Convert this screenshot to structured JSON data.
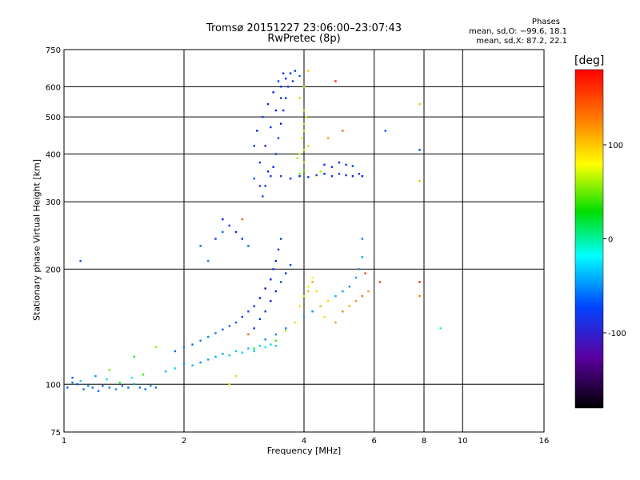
{
  "chart_data": {
    "type": "scatter",
    "title": "Tromsø 20151227 23:06:00–23:07:43",
    "subtitle": "RwPretec (8p)",
    "xlabel": "Frequency [MHz]",
    "ylabel": "Stationary phase Virtual Height [km]",
    "x_scale": "log",
    "y_scale": "log",
    "xlim": [
      1,
      16
    ],
    "ylim": [
      75,
      750
    ],
    "x_ticks": [
      1,
      2,
      4,
      6,
      8,
      10,
      16
    ],
    "y_ticks": [
      75,
      100,
      200,
      300,
      400,
      500,
      600,
      750
    ],
    "grid": true,
    "legend": {
      "title": "Phases",
      "line_o": "mean, sd,O: −99.6, 18.1",
      "line_x": "mean, sd,X:  87.2, 22.1",
      "placement": "top-right"
    },
    "colorbar": {
      "unit": "[deg]",
      "range": [
        -180,
        180
      ],
      "ticks": [
        100,
        0,
        -100
      ]
    },
    "series": [
      {
        "points": [
          [
            1.02,
            98,
            -95
          ],
          [
            1.05,
            101,
            -90
          ],
          [
            1.08,
            100,
            -100
          ],
          [
            1.12,
            97,
            -95
          ],
          [
            1.15,
            99,
            -85
          ],
          [
            1.18,
            98,
            -90
          ],
          [
            1.22,
            96,
            -95
          ],
          [
            1.25,
            99,
            -100
          ],
          [
            1.3,
            98,
            -90
          ],
          [
            1.35,
            97,
            -85
          ],
          [
            1.4,
            99,
            -95
          ],
          [
            1.45,
            98,
            -95
          ],
          [
            1.5,
            100,
            -80
          ],
          [
            1.55,
            98,
            -90
          ],
          [
            1.6,
            97,
            -95
          ],
          [
            1.65,
            99,
            -85
          ],
          [
            1.7,
            98,
            -90
          ],
          [
            1.05,
            104,
            -100
          ],
          [
            1.1,
            102,
            -70
          ],
          [
            1.2,
            105,
            -80
          ],
          [
            1.28,
            103,
            -60
          ],
          [
            1.38,
            101,
            10
          ],
          [
            1.48,
            104,
            -40
          ],
          [
            1.58,
            106,
            40
          ],
          [
            1.8,
            108,
            -70
          ],
          [
            1.9,
            110,
            -60
          ],
          [
            2.0,
            113,
            -80
          ],
          [
            2.1,
            112,
            -75
          ],
          [
            2.2,
            114,
            -85
          ],
          [
            2.3,
            116,
            -80
          ],
          [
            2.4,
            118,
            -75
          ],
          [
            2.5,
            120,
            -80
          ],
          [
            2.6,
            119,
            -70
          ],
          [
            2.7,
            122,
            -65
          ],
          [
            2.8,
            121,
            -60
          ],
          [
            2.9,
            124,
            -70
          ],
          [
            3.0,
            122,
            -65
          ],
          [
            3.1,
            126,
            -60
          ],
          [
            3.2,
            125,
            -55
          ],
          [
            3.3,
            127,
            -60
          ],
          [
            3.4,
            126,
            -65
          ],
          [
            1.9,
            122,
            -95
          ],
          [
            2.0,
            125,
            -90
          ],
          [
            2.1,
            127,
            -95
          ],
          [
            2.2,
            130,
            -90
          ],
          [
            2.3,
            133,
            -85
          ],
          [
            2.4,
            136,
            -90
          ],
          [
            2.5,
            139,
            -100
          ],
          [
            2.6,
            142,
            -95
          ],
          [
            2.7,
            145,
            -100
          ],
          [
            2.8,
            150,
            -110
          ],
          [
            2.9,
            155,
            -105
          ],
          [
            3.0,
            160,
            -115
          ],
          [
            3.1,
            168,
            -120
          ],
          [
            3.2,
            178,
            -125
          ],
          [
            3.3,
            188,
            -120
          ],
          [
            3.35,
            200,
            -115
          ],
          [
            3.4,
            210,
            -120
          ],
          [
            3.45,
            225,
            -115
          ],
          [
            3.5,
            240,
            -110
          ],
          [
            3.0,
            140,
            -110
          ],
          [
            3.1,
            148,
            -115
          ],
          [
            3.2,
            155,
            -110
          ],
          [
            3.3,
            165,
            -120
          ],
          [
            3.4,
            175,
            -115
          ],
          [
            3.5,
            185,
            -110
          ],
          [
            3.6,
            195,
            -115
          ],
          [
            3.7,
            205,
            -110
          ],
          [
            3.2,
            131,
            -90
          ],
          [
            3.4,
            135,
            -85
          ],
          [
            3.6,
            140,
            -90
          ],
          [
            3.8,
            145,
            -85
          ],
          [
            4.0,
            150,
            -80
          ],
          [
            4.2,
            155,
            -85
          ],
          [
            4.4,
            160,
            -80
          ],
          [
            4.6,
            165,
            -85
          ],
          [
            4.8,
            170,
            -75
          ],
          [
            5.0,
            175,
            -80
          ],
          [
            5.2,
            180,
            -85
          ],
          [
            5.4,
            190,
            -80
          ],
          [
            5.5,
            200,
            -85
          ],
          [
            5.6,
            215,
            -80
          ],
          [
            5.6,
            240,
            -90
          ],
          [
            3.4,
            130,
            40
          ],
          [
            3.6,
            138,
            80
          ],
          [
            3.8,
            145,
            100
          ],
          [
            3.9,
            160,
            110
          ],
          [
            4.0,
            170,
            105
          ],
          [
            4.1,
            180,
            95
          ],
          [
            4.2,
            190,
            100
          ],
          [
            4.3,
            175,
            110
          ],
          [
            4.4,
            160,
            120
          ],
          [
            4.5,
            150,
            115
          ],
          [
            4.6,
            165,
            105
          ],
          [
            4.8,
            145,
            130
          ],
          [
            5.0,
            155,
            140
          ],
          [
            5.2,
            160,
            125
          ],
          [
            5.4,
            165,
            135
          ],
          [
            5.6,
            170,
            145
          ],
          [
            5.8,
            175,
            130
          ],
          [
            3.0,
            124,
            10
          ],
          [
            2.6,
            100,
            90
          ],
          [
            2.7,
            105,
            80
          ],
          [
            1.3,
            109,
            60
          ],
          [
            1.5,
            118,
            30
          ],
          [
            1.7,
            125,
            70
          ],
          [
            2.9,
            135,
            150
          ],
          [
            4.1,
            175,
            120
          ],
          [
            4.2,
            185,
            130
          ],
          [
            5.7,
            195,
            160
          ],
          [
            6.2,
            185,
            160
          ],
          [
            7.8,
            185,
            170
          ],
          [
            8.8,
            140,
            -40
          ],
          [
            7.8,
            170,
            140
          ],
          [
            3.0,
            345,
            -100
          ],
          [
            3.1,
            380,
            -110
          ],
          [
            3.2,
            420,
            -120
          ],
          [
            3.3,
            470,
            -115
          ],
          [
            3.4,
            520,
            -120
          ],
          [
            3.5,
            560,
            -115
          ],
          [
            3.5,
            600,
            -110
          ],
          [
            3.6,
            630,
            -120
          ],
          [
            3.7,
            650,
            -115
          ],
          [
            3.65,
            600,
            -110
          ],
          [
            3.6,
            560,
            -120
          ],
          [
            3.55,
            520,
            -115
          ],
          [
            3.5,
            480,
            -120
          ],
          [
            3.45,
            440,
            -110
          ],
          [
            3.4,
            400,
            -115
          ],
          [
            3.35,
            370,
            -120
          ],
          [
            3.3,
            350,
            -110
          ],
          [
            3.2,
            330,
            -115
          ],
          [
            3.15,
            310,
            -105
          ],
          [
            3.1,
            330,
            -110
          ],
          [
            3.25,
            360,
            -120
          ],
          [
            3.0,
            420,
            -115
          ],
          [
            3.05,
            460,
            -120
          ],
          [
            3.15,
            500,
            -110
          ],
          [
            3.25,
            540,
            -115
          ],
          [
            3.35,
            580,
            -120
          ],
          [
            3.45,
            620,
            -110
          ],
          [
            3.55,
            650,
            -115
          ],
          [
            3.75,
            620,
            -110
          ],
          [
            3.8,
            660,
            -115
          ],
          [
            3.9,
            640,
            -100
          ],
          [
            3.9,
            560,
            80
          ],
          [
            4.0,
            520,
            90
          ],
          [
            4.0,
            480,
            110
          ],
          [
            3.95,
            440,
            100
          ],
          [
            4.0,
            410,
            95
          ],
          [
            3.9,
            400,
            85
          ],
          [
            3.85,
            390,
            70
          ],
          [
            4.0,
            380,
            90
          ],
          [
            4.1,
            420,
            80
          ],
          [
            4.0,
            460,
            100
          ],
          [
            4.05,
            500,
            95
          ],
          [
            4.0,
            600,
            90
          ],
          [
            4.1,
            660,
            120
          ],
          [
            3.5,
            350,
            -110
          ],
          [
            3.7,
            345,
            -115
          ],
          [
            3.9,
            350,
            -120
          ],
          [
            4.1,
            348,
            -115
          ],
          [
            4.3,
            352,
            -110
          ],
          [
            4.5,
            355,
            -120
          ],
          [
            4.7,
            350,
            -115
          ],
          [
            4.9,
            355,
            -110
          ],
          [
            5.1,
            352,
            -115
          ],
          [
            5.3,
            350,
            -120
          ],
          [
            5.5,
            355,
            -115
          ],
          [
            5.6,
            350,
            -120
          ],
          [
            4.5,
            375,
            -115
          ],
          [
            4.7,
            370,
            -110
          ],
          [
            4.9,
            380,
            -120
          ],
          [
            5.1,
            375,
            -115
          ],
          [
            5.3,
            372,
            -110
          ],
          [
            3.9,
            355,
            60
          ],
          [
            4.4,
            360,
            70
          ],
          [
            4.0,
            362,
            50
          ],
          [
            4.6,
            440,
            130
          ],
          [
            4.8,
            620,
            170
          ],
          [
            5.0,
            460,
            150
          ],
          [
            6.4,
            460,
            -100
          ],
          [
            7.8,
            410,
            -110
          ],
          [
            7.8,
            540,
            120
          ],
          [
            7.8,
            340,
            120
          ],
          [
            2.5,
            270,
            -120
          ],
          [
            2.6,
            260,
            -110
          ],
          [
            2.7,
            250,
            -115
          ],
          [
            2.8,
            240,
            -110
          ],
          [
            2.9,
            230,
            -100
          ],
          [
            2.2,
            230,
            -100
          ],
          [
            2.4,
            240,
            -110
          ],
          [
            2.8,
            270,
            150
          ],
          [
            1.1,
            210,
            -100
          ],
          [
            2.3,
            210,
            -90
          ],
          [
            2.5,
            250,
            -95
          ]
        ]
      }
    ]
  }
}
